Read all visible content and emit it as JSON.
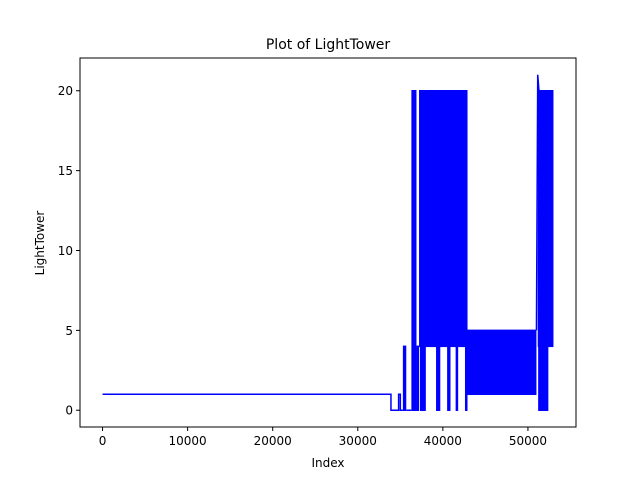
{
  "chart_data": {
    "type": "line",
    "title": "Plot of LightTower",
    "xlabel": "Index",
    "ylabel": "LightTower",
    "xlim": [
      -2650,
      55650
    ],
    "ylim": [
      -1.05,
      22.05
    ],
    "x_ticks": [
      0,
      10000,
      20000,
      30000,
      40000,
      50000
    ],
    "x_tick_labels": [
      "0",
      "10000",
      "20000",
      "30000",
      "40000",
      "50000"
    ],
    "y_ticks": [
      0,
      5,
      10,
      15,
      20
    ],
    "y_tick_labels": [
      "0",
      "5",
      "10",
      "15",
      "20"
    ],
    "grid": false,
    "legend": "none",
    "color": "#0000ff",
    "series": [
      {
        "name": "",
        "segments": [
          {
            "kind": "line",
            "points": [
              [
                0,
                1
              ],
              [
                33900,
                1
              ],
              [
                33900,
                0
              ],
              [
                34800,
                0
              ],
              [
                34800,
                1
              ],
              [
                35000,
                1
              ],
              [
                35000,
                0
              ],
              [
                35300,
                0
              ]
            ]
          },
          {
            "kind": "band",
            "x0": 35300,
            "x1": 35700,
            "ymin": 0,
            "ymax": 4
          },
          {
            "kind": "line",
            "points": [
              [
                35700,
                0
              ],
              [
                36300,
                0
              ]
            ]
          },
          {
            "kind": "band",
            "x0": 36300,
            "x1": 36900,
            "ymin": 0,
            "ymax": 20
          },
          {
            "kind": "band",
            "x0": 36900,
            "x1": 37200,
            "ymin": 0,
            "ymax": 4
          },
          {
            "kind": "band",
            "x0": 37200,
            "x1": 42800,
            "ymin": 4,
            "ymax": 20
          },
          {
            "kind": "band",
            "x0": 37300,
            "x1": 38000,
            "ymin": 0,
            "ymax": 20
          },
          {
            "kind": "band",
            "x0": 39200,
            "x1": 39700,
            "ymin": 0,
            "ymax": 20
          },
          {
            "kind": "band",
            "x0": 40500,
            "x1": 40900,
            "ymin": 0,
            "ymax": 20
          },
          {
            "kind": "band",
            "x0": 41500,
            "x1": 41800,
            "ymin": 0,
            "ymax": 20
          },
          {
            "kind": "band",
            "x0": 42600,
            "x1": 42900,
            "ymin": 0,
            "ymax": 20
          },
          {
            "kind": "band",
            "x0": 42800,
            "x1": 51000,
            "ymin": 1,
            "ymax": 5
          },
          {
            "kind": "line",
            "points": [
              [
                51000,
                5
              ],
              [
                51150,
                21
              ],
              [
                51300,
                20
              ]
            ]
          },
          {
            "kind": "band",
            "x0": 51150,
            "x1": 53000,
            "ymin": 4,
            "ymax": 20
          },
          {
            "kind": "band",
            "x0": 51200,
            "x1": 52400,
            "ymin": 0,
            "ymax": 5
          }
        ]
      }
    ]
  }
}
